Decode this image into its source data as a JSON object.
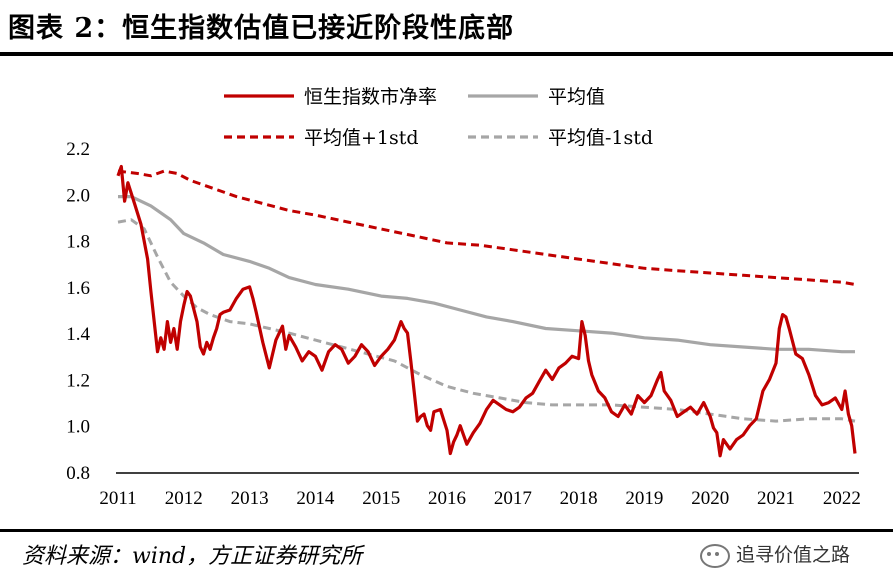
{
  "header": {
    "title": "图表 2：恒生指数估值已接近阶段性底部"
  },
  "footer": {
    "source": "资料来源：wind，方正证券研究所",
    "watermark": "追寻价值之路"
  },
  "chart_data": {
    "type": "line",
    "title": "",
    "xlabel": "",
    "ylabel": "",
    "x_ticks": [
      "2011",
      "2012",
      "2013",
      "2014",
      "2015",
      "2016",
      "2017",
      "2018",
      "2019",
      "2020",
      "2021",
      "2022"
    ],
    "y_ticks": [
      "0.8",
      "1.0",
      "1.2",
      "1.4",
      "1.6",
      "1.8",
      "2.0",
      "2.2"
    ],
    "xlim": [
      2011.0,
      2022.2
    ],
    "ylim": [
      0.8,
      2.2
    ],
    "grid": false,
    "legend_placement": "top",
    "series": [
      {
        "name": "恒生指数市净率",
        "color": "#c00000",
        "style": "solid",
        "x": [
          2011.0,
          2011.05,
          2011.1,
          2011.15,
          2011.25,
          2011.35,
          2011.45,
          2011.5,
          2011.55,
          2011.6,
          2011.65,
          2011.7,
          2011.75,
          2011.8,
          2011.85,
          2011.9,
          2011.95,
          2012.0,
          2012.05,
          2012.1,
          2012.2,
          2012.25,
          2012.3,
          2012.35,
          2012.4,
          2012.45,
          2012.5,
          2012.55,
          2012.6,
          2012.7,
          2012.8,
          2012.9,
          2013.0,
          2013.05,
          2013.1,
          2013.2,
          2013.3,
          2013.35,
          2013.4,
          2013.45,
          2013.5,
          2013.55,
          2013.6,
          2013.7,
          2013.8,
          2013.9,
          2014.0,
          2014.1,
          2014.2,
          2014.3,
          2014.4,
          2014.5,
          2014.6,
          2014.7,
          2014.8,
          2014.9,
          2015.0,
          2015.1,
          2015.2,
          2015.3,
          2015.35,
          2015.4,
          2015.45,
          2015.5,
          2015.55,
          2015.6,
          2015.65,
          2015.7,
          2015.75,
          2015.8,
          2015.9,
          2016.0,
          2016.05,
          2016.1,
          2016.15,
          2016.2,
          2016.3,
          2016.4,
          2016.5,
          2016.6,
          2016.7,
          2016.8,
          2016.9,
          2017.0,
          2017.1,
          2017.2,
          2017.3,
          2017.4,
          2017.5,
          2017.6,
          2017.7,
          2017.8,
          2017.9,
          2018.0,
          2018.05,
          2018.1,
          2018.15,
          2018.2,
          2018.3,
          2018.4,
          2018.5,
          2018.6,
          2018.7,
          2018.8,
          2018.9,
          2019.0,
          2019.1,
          2019.2,
          2019.25,
          2019.3,
          2019.4,
          2019.5,
          2019.6,
          2019.7,
          2019.8,
          2019.9,
          2020.0,
          2020.05,
          2020.1,
          2020.15,
          2020.2,
          2020.3,
          2020.4,
          2020.5,
          2020.6,
          2020.7,
          2020.8,
          2020.9,
          2021.0,
          2021.05,
          2021.1,
          2021.15,
          2021.2,
          2021.3,
          2021.4,
          2021.5,
          2021.6,
          2021.7,
          2021.8,
          2021.9,
          2022.0,
          2022.05,
          2022.1,
          2022.15,
          2022.2
        ],
        "y": [
          2.08,
          2.12,
          1.97,
          2.05,
          1.96,
          1.87,
          1.72,
          1.58,
          1.45,
          1.32,
          1.38,
          1.33,
          1.45,
          1.36,
          1.42,
          1.33,
          1.45,
          1.52,
          1.58,
          1.56,
          1.45,
          1.34,
          1.31,
          1.36,
          1.33,
          1.38,
          1.42,
          1.48,
          1.49,
          1.5,
          1.55,
          1.59,
          1.6,
          1.55,
          1.49,
          1.36,
          1.25,
          1.31,
          1.37,
          1.4,
          1.43,
          1.33,
          1.39,
          1.34,
          1.28,
          1.32,
          1.3,
          1.24,
          1.32,
          1.35,
          1.33,
          1.27,
          1.3,
          1.35,
          1.32,
          1.26,
          1.3,
          1.33,
          1.37,
          1.45,
          1.42,
          1.4,
          1.28,
          1.15,
          1.02,
          1.04,
          1.05,
          1.0,
          0.98,
          1.06,
          1.07,
          0.98,
          0.88,
          0.93,
          0.96,
          1.0,
          0.92,
          0.97,
          1.01,
          1.07,
          1.11,
          1.09,
          1.07,
          1.06,
          1.08,
          1.12,
          1.14,
          1.19,
          1.24,
          1.2,
          1.25,
          1.27,
          1.3,
          1.29,
          1.45,
          1.39,
          1.28,
          1.22,
          1.15,
          1.12,
          1.06,
          1.04,
          1.09,
          1.05,
          1.13,
          1.1,
          1.13,
          1.2,
          1.23,
          1.15,
          1.11,
          1.04,
          1.06,
          1.08,
          1.05,
          1.1,
          1.04,
          0.99,
          0.97,
          0.87,
          0.94,
          0.9,
          0.94,
          0.96,
          1.0,
          1.03,
          1.15,
          1.2,
          1.27,
          1.42,
          1.48,
          1.47,
          1.42,
          1.31,
          1.29,
          1.22,
          1.13,
          1.09,
          1.1,
          1.12,
          1.07,
          1.15,
          1.05,
          1.0,
          0.88
        ]
      },
      {
        "name": "平均值",
        "color": "#a6a6a6",
        "style": "solid",
        "x": [
          2011.0,
          2011.2,
          2011.5,
          2011.8,
          2012.0,
          2012.3,
          2012.6,
          2013.0,
          2013.3,
          2013.6,
          2014.0,
          2014.5,
          2015.0,
          2015.4,
          2015.8,
          2016.2,
          2016.6,
          2017.0,
          2017.5,
          2018.0,
          2018.5,
          2019.0,
          2019.5,
          2020.0,
          2020.5,
          2021.0,
          2021.5,
          2022.0,
          2022.2
        ],
        "y": [
          1.99,
          1.99,
          1.95,
          1.89,
          1.83,
          1.79,
          1.74,
          1.71,
          1.68,
          1.64,
          1.61,
          1.59,
          1.56,
          1.55,
          1.53,
          1.5,
          1.47,
          1.45,
          1.42,
          1.41,
          1.4,
          1.38,
          1.37,
          1.35,
          1.34,
          1.33,
          1.33,
          1.32,
          1.32
        ]
      },
      {
        "name": "平均值+1std",
        "color": "#c00000",
        "style": "dashed",
        "x": [
          2011.0,
          2011.3,
          2011.5,
          2011.7,
          2011.9,
          2012.1,
          2012.4,
          2012.8,
          2013.2,
          2013.6,
          2014.0,
          2014.5,
          2015.0,
          2015.5,
          2016.0,
          2016.5,
          2017.0,
          2017.5,
          2018.0,
          2018.5,
          2019.0,
          2019.5,
          2020.0,
          2020.5,
          2021.0,
          2021.5,
          2022.0,
          2022.2
        ],
        "y": [
          2.1,
          2.09,
          2.08,
          2.1,
          2.09,
          2.06,
          2.03,
          1.99,
          1.96,
          1.93,
          1.91,
          1.88,
          1.85,
          1.82,
          1.79,
          1.78,
          1.76,
          1.74,
          1.72,
          1.7,
          1.68,
          1.67,
          1.66,
          1.65,
          1.64,
          1.63,
          1.62,
          1.61
        ]
      },
      {
        "name": "平均值-1std",
        "color": "#a6a6a6",
        "style": "dashed",
        "x": [
          2011.0,
          2011.2,
          2011.4,
          2011.6,
          2011.8,
          2012.0,
          2012.2,
          2012.4,
          2012.7,
          2013.0,
          2013.3,
          2013.6,
          2014.0,
          2014.4,
          2014.8,
          2015.2,
          2015.6,
          2016.0,
          2016.4,
          2016.8,
          2017.2,
          2017.6,
          2018.0,
          2018.5,
          2019.0,
          2019.5,
          2020.0,
          2020.5,
          2021.0,
          2021.5,
          2022.0,
          2022.2
        ],
        "y": [
          1.88,
          1.89,
          1.85,
          1.73,
          1.62,
          1.56,
          1.51,
          1.48,
          1.45,
          1.44,
          1.42,
          1.4,
          1.37,
          1.34,
          1.31,
          1.28,
          1.22,
          1.17,
          1.14,
          1.12,
          1.1,
          1.09,
          1.09,
          1.09,
          1.08,
          1.07,
          1.05,
          1.03,
          1.02,
          1.03,
          1.03,
          1.02
        ]
      }
    ]
  }
}
